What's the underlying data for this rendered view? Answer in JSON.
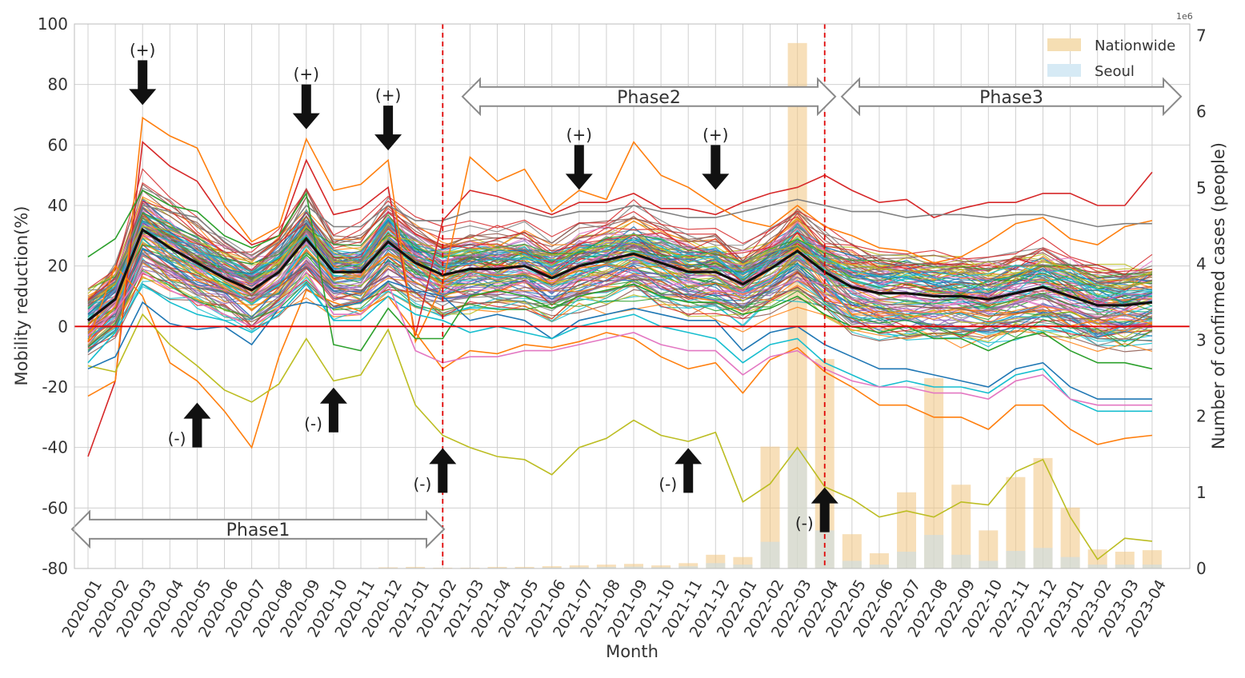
{
  "chart_data": {
    "type": "line",
    "xlabel": "Month",
    "ylabel": "Mobility reduction(%)",
    "y2label": "Number of confirmed cases (people)",
    "y2_multiplier": "1e6",
    "ylim": [
      -80,
      100
    ],
    "yticks": [
      -80,
      -60,
      -40,
      -20,
      0,
      20,
      40,
      60,
      80,
      100
    ],
    "y2lim": [
      0,
      7.15
    ],
    "y2ticks": [
      0,
      1,
      2,
      3,
      4,
      5,
      6,
      7
    ],
    "grid": true,
    "legend_position": "top-right",
    "categories": [
      "2020-01",
      "2020-02",
      "2020-03",
      "2020-04",
      "2020-05",
      "2020-06",
      "2020-07",
      "2020-08",
      "2020-09",
      "2020-10",
      "2020-11",
      "2020-12",
      "2021-01",
      "2021-02",
      "2021-03",
      "2021-04",
      "2021-05",
      "2021-06",
      "2021-07",
      "2021-08",
      "2021-09",
      "2021-10",
      "2021-11",
      "2021-12",
      "2022-01",
      "2022-02",
      "2022-03",
      "2022-04",
      "2022-05",
      "2022-06",
      "2022-07",
      "2022-08",
      "2022-09",
      "2022-10",
      "2022-11",
      "2022-12",
      "2023-01",
      "2023-02",
      "2023-03",
      "2023-04"
    ],
    "mean_series": [
      2,
      9,
      32,
      26,
      21,
      16,
      12,
      18,
      29,
      18,
      18,
      28,
      21,
      17,
      19,
      19,
      20,
      16,
      20,
      22,
      24,
      21,
      18,
      18,
      14,
      19,
      25,
      18,
      13,
      11,
      11,
      10,
      10,
      9,
      11,
      13,
      10,
      7,
      7,
      8
    ],
    "notable_series": [
      {
        "color": "#d62728",
        "values": [
          -43,
          -18,
          61,
          53,
          48,
          35,
          27,
          30,
          55,
          37,
          39,
          46,
          -3,
          35,
          45,
          43,
          40,
          37,
          41,
          41,
          44,
          39,
          39,
          37,
          41,
          44,
          46,
          50,
          45,
          41,
          42,
          36,
          39,
          41,
          41,
          44,
          44,
          40,
          40,
          51
        ]
      },
      {
        "color": "#ff7f0e",
        "values": [
          -23,
          -18,
          69,
          63,
          59,
          40,
          28,
          33,
          62,
          45,
          47,
          55,
          -5,
          14,
          56,
          48,
          52,
          38,
          45,
          42,
          61,
          50,
          46,
          40,
          35,
          33,
          40,
          33,
          30,
          26,
          25,
          21,
          23,
          28,
          34,
          36,
          29,
          27,
          33,
          35
        ]
      },
      {
        "color": "#ff7f0e",
        "values": [
          -5,
          20,
          10,
          -12,
          -18,
          -28,
          -40,
          -10,
          12,
          8,
          5,
          10,
          -2,
          -14,
          -8,
          -9,
          -6,
          -7,
          -5,
          -2,
          -4,
          -10,
          -14,
          -12,
          -22,
          -11,
          -7,
          -15,
          -20,
          -26,
          -26,
          -30,
          -30,
          -34,
          -26,
          -26,
          -34,
          -39,
          -37,
          -36
        ]
      },
      {
        "color": "#bcbd22",
        "values": [
          -13,
          -15,
          4,
          -6,
          -13,
          -21,
          -25,
          -19,
          -4,
          -18,
          -16,
          -1,
          -26,
          -36,
          -40,
          -43,
          -44,
          -49,
          -40,
          -37,
          -31,
          -36,
          -38,
          -35,
          -58,
          -52,
          -40,
          -53,
          -57,
          -63,
          -61,
          -63,
          -58,
          -59,
          -48,
          -44,
          -63,
          -77,
          -70,
          -71
        ]
      },
      {
        "color": "#7f7f7f",
        "values": [
          8,
          15,
          40,
          38,
          36,
          28,
          22,
          28,
          40,
          33,
          33,
          40,
          35,
          35,
          38,
          38,
          38,
          36,
          38,
          38,
          40,
          38,
          36,
          36,
          38,
          40,
          42,
          40,
          38,
          38,
          36,
          37,
          37,
          36,
          37,
          37,
          35,
          33,
          34,
          34
        ]
      },
      {
        "color": "#1f77b4",
        "values": [
          -14,
          -10,
          8,
          1,
          -1,
          0,
          -6,
          6,
          8,
          6,
          8,
          15,
          12,
          10,
          2,
          4,
          2,
          -4,
          2,
          4,
          6,
          4,
          2,
          2,
          -8,
          -2,
          0,
          -6,
          -10,
          -14,
          -14,
          -16,
          -18,
          -20,
          -14,
          -12,
          -20,
          -24,
          -24,
          -24
        ]
      },
      {
        "color": "#17becf",
        "values": [
          -12,
          -2,
          14,
          8,
          4,
          2,
          -2,
          4,
          14,
          2,
          2,
          10,
          4,
          2,
          -2,
          0,
          -2,
          -4,
          0,
          2,
          4,
          0,
          -2,
          -4,
          -12,
          -6,
          -4,
          -12,
          -16,
          -20,
          -18,
          -20,
          -20,
          -22,
          -16,
          -14,
          -24,
          -28,
          -28,
          -28
        ]
      },
      {
        "color": "#2ca02c",
        "values": [
          23,
          29,
          45,
          40,
          38,
          30,
          26,
          30,
          44,
          -6,
          -8,
          6,
          -4,
          -4,
          10,
          12,
          10,
          6,
          10,
          12,
          14,
          10,
          8,
          8,
          4,
          6,
          10,
          4,
          0,
          -2,
          0,
          -4,
          -4,
          -8,
          -4,
          -2,
          -8,
          -12,
          -12,
          -14
        ]
      },
      {
        "color": "#e377c2",
        "values": [
          -3,
          5,
          18,
          12,
          8,
          4,
          0,
          6,
          18,
          4,
          4,
          14,
          -8,
          -12,
          -10,
          -10,
          -8,
          -8,
          -6,
          -4,
          -2,
          -6,
          -8,
          -8,
          -16,
          -10,
          -8,
          -14,
          -18,
          -20,
          -20,
          -22,
          -22,
          -24,
          -18,
          -16,
          -24,
          -26,
          -26,
          -26
        ]
      }
    ],
    "bars_nationwide": [
      0,
      0,
      0,
      0,
      0,
      0,
      0,
      0,
      0,
      0,
      0.005,
      0.015,
      0.02,
      0.01,
      0.01,
      0.02,
      0.02,
      0.03,
      0.04,
      0.05,
      0.06,
      0.04,
      0.07,
      0.18,
      0.15,
      1.6,
      6.9,
      2.75,
      0.45,
      0.2,
      1.0,
      2.5,
      1.1,
      0.5,
      1.2,
      1.45,
      0.8,
      0.25,
      0.22,
      0.24
    ],
    "bars_seoul": [
      0,
      0,
      0,
      0,
      0,
      0,
      0,
      0,
      0,
      0,
      0.002,
      0.006,
      0.008,
      0.004,
      0.004,
      0.008,
      0.008,
      0.012,
      0.016,
      0.02,
      0.025,
      0.016,
      0.03,
      0.07,
      0.05,
      0.35,
      1.55,
      0.5,
      0.1,
      0.05,
      0.22,
      0.44,
      0.18,
      0.1,
      0.23,
      0.27,
      0.15,
      0.05,
      0.05,
      0.05
    ],
    "legend": [
      {
        "label": "Nationwide",
        "color": "#f5deb3"
      },
      {
        "label": "Seoul",
        "color": "#d6eaf5"
      }
    ],
    "phases": [
      {
        "label": "Phase1",
        "from": "2020-01",
        "to": "2021-01"
      },
      {
        "label": "Phase2",
        "from": "2021-02",
        "to": "2022-04"
      },
      {
        "label": "Phase3",
        "from": "2022-04",
        "to": "2023-04"
      }
    ],
    "phase_dividers": [
      "2021-02",
      "2022-04"
    ],
    "annotations": [
      {
        "text": "(+)",
        "direction": "down",
        "month": "2020-03",
        "y": 88
      },
      {
        "text": "(+)",
        "direction": "down",
        "month": "2020-09",
        "y": 80
      },
      {
        "text": "(+)",
        "direction": "down",
        "month": "2020-12",
        "y": 73
      },
      {
        "text": "(+)",
        "direction": "down",
        "month": "2021-07",
        "y": 60
      },
      {
        "text": "(+)",
        "direction": "down",
        "month": "2021-12",
        "y": 60
      },
      {
        "text": "(-)",
        "direction": "up",
        "month": "2020-05",
        "y": -40
      },
      {
        "text": "(-)",
        "direction": "up",
        "month": "2020-10",
        "y": -35
      },
      {
        "text": "(-)",
        "direction": "up",
        "month": "2021-02",
        "y": -55
      },
      {
        "text": "(-)",
        "direction": "up",
        "month": "2021-11",
        "y": -55
      },
      {
        "text": "(-)",
        "direction": "up",
        "month": "2022-04",
        "y": -68
      }
    ]
  }
}
